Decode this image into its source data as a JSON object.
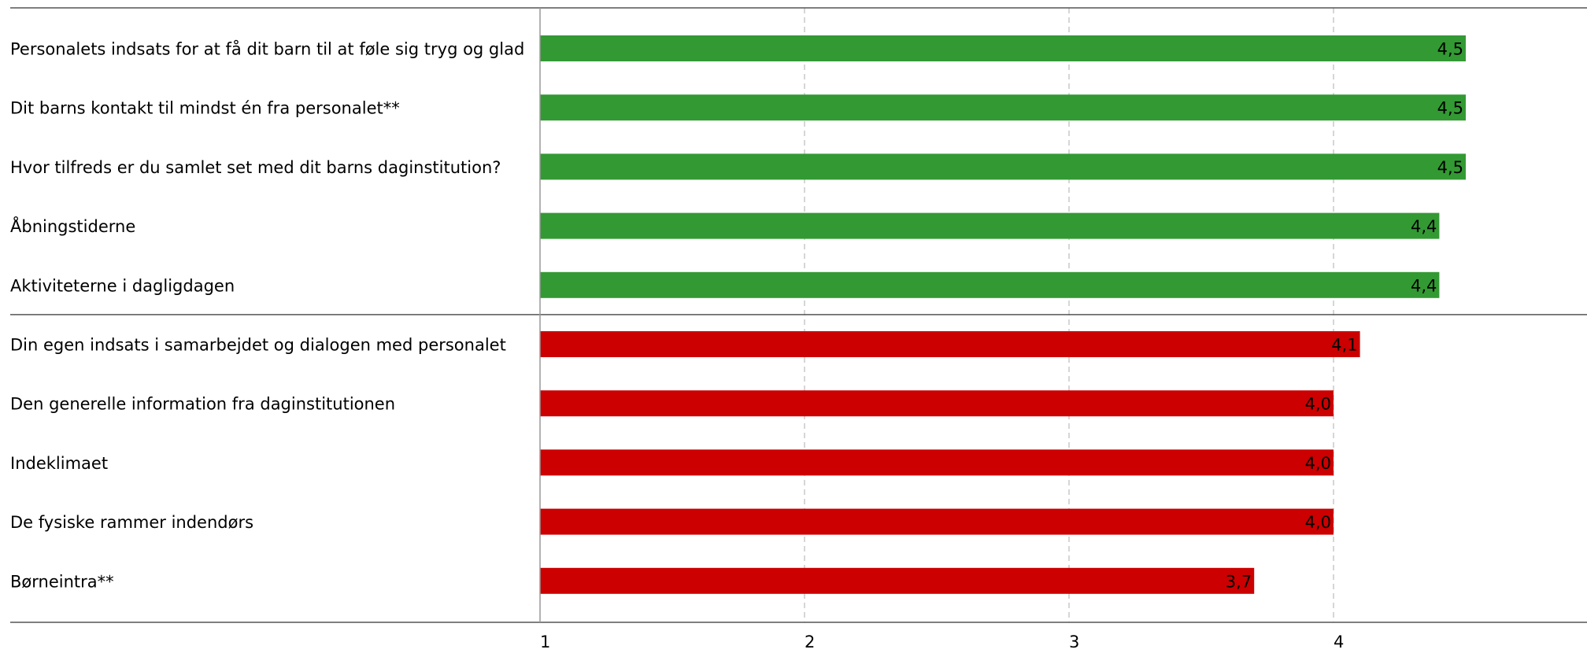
{
  "chart_data": {
    "type": "bar",
    "orientation": "horizontal",
    "categories": [
      "Personalets indsats for at få dit barn til at føle sig tryg og glad",
      "Dit barns kontakt til mindst én fra personalet**",
      "Hvor tilfreds er du samlet set med dit barns daginstitution?",
      "Åbningstiderne",
      "Aktiviteterne i dagligdagen",
      "Din egen indsats i samarbejdet og dialogen med personalet",
      "Den generelle information fra daginstitutionen",
      "Indeklimaet",
      "De fysiske rammer indendørs",
      "Børneintra**"
    ],
    "values": [
      4.5,
      4.5,
      4.5,
      4.4,
      4.4,
      4.1,
      4.0,
      4.0,
      4.0,
      3.7
    ],
    "value_labels": [
      "4,5",
      "4,5",
      "4,5",
      "4,4",
      "4,4",
      "4,1",
      "4,0",
      "4,0",
      "4,0",
      "3,7"
    ],
    "groups": [
      {
        "from": 0,
        "to": 4,
        "color": "#339933"
      },
      {
        "from": 5,
        "to": 9,
        "color": "#cc0000"
      }
    ],
    "x_ticks": [
      1,
      2,
      3,
      4
    ],
    "x_tick_labels": [
      "1",
      "2",
      "3",
      "4"
    ],
    "xlim": [
      1,
      5
    ],
    "grid": "vertical-dashed",
    "legend": "none",
    "title": "",
    "xlabel": "",
    "ylabel": ""
  }
}
